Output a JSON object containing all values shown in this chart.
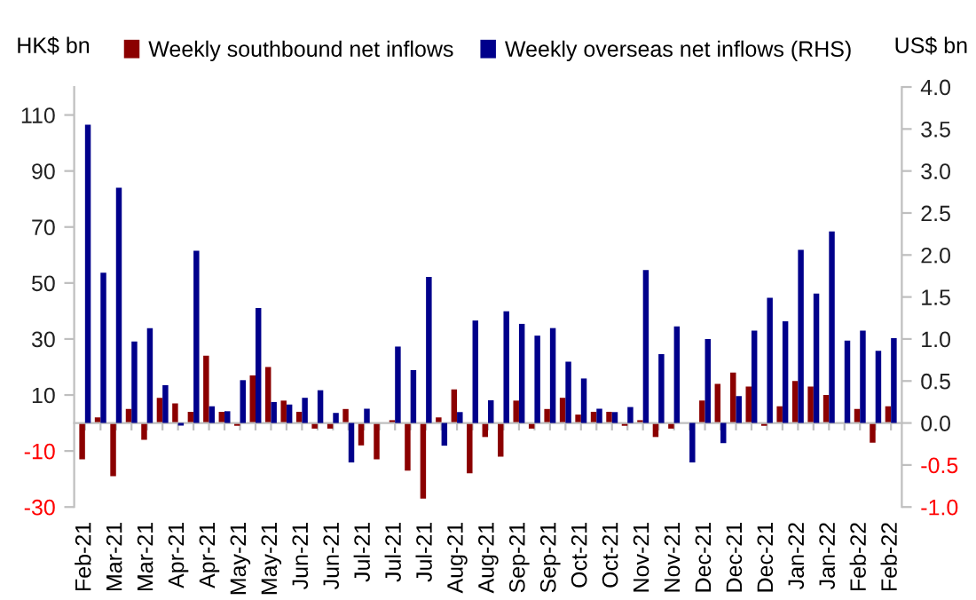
{
  "chart_data": {
    "type": "bar",
    "ylabel": "HK$ bn",
    "y2label": "US$ bn",
    "categories": [
      "Feb-21",
      null,
      "Mar-21",
      null,
      "Mar-21",
      null,
      "Apr-21",
      null,
      "Apr-21",
      null,
      "May-21",
      null,
      "May-21",
      null,
      "Jun-21",
      null,
      "Jun-21",
      null,
      "Jul-21",
      null,
      "Jul-21",
      null,
      "Jul-21",
      null,
      "Aug-21",
      null,
      "Aug-21",
      null,
      "Sep-21",
      null,
      "Sep-21",
      null,
      "Oct-21",
      null,
      "Oct-21",
      null,
      "Nov-21",
      null,
      "Nov-21",
      null,
      "Dec-21",
      null,
      "Dec-21",
      null,
      "Dec-21",
      null,
      "Jan-22",
      null,
      "Jan-22",
      null,
      "Feb-22",
      null,
      "Feb-22"
    ],
    "series": [
      {
        "name": "Weekly southbound net inflows",
        "color": "#8b0000",
        "values": [
          -13,
          2,
          -19,
          5,
          -6,
          9,
          7,
          4,
          24,
          4,
          -1,
          17,
          20,
          8,
          4,
          -2,
          -2,
          5,
          -8,
          -13,
          1,
          -17,
          -27,
          2,
          12,
          -18,
          -5,
          -12,
          8,
          -2,
          5,
          9,
          3,
          4,
          4,
          -1,
          1,
          -5,
          -2,
          null,
          8,
          14,
          18,
          13,
          -1,
          6,
          15,
          13,
          10,
          null,
          5,
          -7,
          6
        ]
      },
      {
        "name": "Weekly overseas net inflows (RHS)",
        "color": "#00008b",
        "axis": "y2",
        "values": [
          3.55,
          1.79,
          2.8,
          0.97,
          1.13,
          0.45,
          -0.03,
          2.05,
          0.2,
          0.14,
          0.51,
          1.37,
          0.25,
          0.22,
          0.3,
          0.39,
          0.12,
          -0.47,
          0.17,
          null,
          0.91,
          0.63,
          1.74,
          -0.27,
          0.13,
          1.22,
          0.27,
          1.33,
          1.18,
          1.04,
          1.13,
          0.73,
          0.53,
          0.17,
          0.13,
          0.19,
          1.82,
          0.82,
          1.15,
          -0.47,
          1.0,
          -0.24,
          0.32,
          1.1,
          1.49,
          1.21,
          2.06,
          1.54,
          2.28,
          0.98,
          1.1,
          0.86,
          1.01
        ]
      }
    ],
    "ylim": [
      -30,
      120
    ],
    "yticks": [
      -30,
      -10,
      10,
      30,
      50,
      70,
      90,
      110
    ],
    "y2lim": [
      -1,
      4
    ],
    "y2ticks": [
      {
        "value": -1,
        "label": "-1.0"
      },
      {
        "value": -0.5,
        "label": "-0.5"
      },
      {
        "value": 0,
        "label": "0.0"
      },
      {
        "value": 0.5,
        "label": "0.5"
      },
      {
        "value": 1,
        "label": "1.0"
      },
      {
        "value": 1.5,
        "label": "1.5"
      },
      {
        "value": 2,
        "label": "2.0"
      },
      {
        "value": 2.5,
        "label": "2.5"
      },
      {
        "value": 3,
        "label": "3.0"
      },
      {
        "value": 3.5,
        "label": "3.5"
      },
      {
        "value": 4,
        "label": "4.0"
      }
    ],
    "legend": "top"
  }
}
